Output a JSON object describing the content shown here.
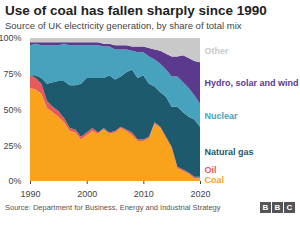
{
  "chart_data": {
    "type": "area",
    "stacked": true,
    "title": "Use of coal has fallen sharply since 1990",
    "subtitle": "Source of UK electricity generation, by share of total mix",
    "source": "Source: Department for Business, Energy and Industrial Strategy",
    "logo": "BBC",
    "x": [
      1990,
      1991,
      1992,
      1993,
      1994,
      1995,
      1996,
      1997,
      1998,
      1999,
      2000,
      2001,
      2002,
      2003,
      2004,
      2005,
      2006,
      2007,
      2008,
      2009,
      2010,
      2011,
      2012,
      2013,
      2014,
      2015,
      2016,
      2017,
      2018,
      2019,
      2020
    ],
    "xlim": [
      1990,
      2020
    ],
    "xticks": [
      1990,
      2000,
      2010,
      2020
    ],
    "ylim": [
      0,
      100
    ],
    "yticks": [
      {
        "value": 0,
        "label": "0%"
      },
      {
        "value": 25,
        "label": "25%"
      },
      {
        "value": 50,
        "label": "50%"
      },
      {
        "value": 75,
        "label": "75%"
      },
      {
        "value": 100,
        "label": "100%"
      }
    ],
    "series": [
      {
        "name": "Coal",
        "color": "#f8a31b",
        "values": [
          65,
          64,
          61,
          51,
          48,
          45,
          41,
          35,
          34,
          29,
          32,
          35,
          33,
          36,
          33,
          34,
          37,
          35,
          32,
          28,
          28,
          30,
          40,
          37,
          30,
          23,
          9,
          7,
          5,
          2,
          2
        ]
      },
      {
        "name": "Oil",
        "color": "#e8595b",
        "values": [
          9,
          8,
          7,
          5,
          4,
          4,
          3,
          2,
          2,
          2,
          2,
          2,
          1,
          1,
          1,
          1,
          1,
          1,
          2,
          1,
          1,
          1,
          1,
          1,
          1,
          1,
          1,
          1,
          1,
          1,
          1
        ]
      },
      {
        "name": "Natural gas",
        "color": "#1d5a6e",
        "values": [
          0,
          2,
          4,
          12,
          17,
          21,
          26,
          30,
          31,
          37,
          38,
          35,
          38,
          35,
          40,
          36,
          35,
          40,
          44,
          43,
          45,
          37,
          25,
          24,
          28,
          28,
          42,
          40,
          39,
          40,
          35
        ]
      },
      {
        "name": "Nuclear",
        "color": "#46a2bd",
        "values": [
          21,
          22,
          23,
          27,
          26,
          25,
          26,
          28,
          28,
          27,
          23,
          23,
          23,
          22,
          20,
          21,
          19,
          16,
          13,
          18,
          16,
          19,
          19,
          20,
          19,
          21,
          21,
          21,
          20,
          17,
          16
        ]
      },
      {
        "name": "Hydro, solar and wind",
        "color": "#5b3a8e",
        "values": [
          2,
          1,
          2,
          2,
          2,
          2,
          1,
          2,
          2,
          2,
          2,
          2,
          2,
          2,
          2,
          3,
          3,
          3,
          3,
          4,
          4,
          6,
          7,
          9,
          11,
          14,
          14,
          19,
          21,
          24,
          29
        ]
      },
      {
        "name": "Other",
        "color": "#c9c9c9",
        "values": [
          3,
          3,
          3,
          3,
          3,
          3,
          3,
          3,
          3,
          3,
          3,
          3,
          3,
          4,
          4,
          5,
          5,
          5,
          6,
          6,
          6,
          7,
          8,
          9,
          11,
          13,
          13,
          12,
          14,
          16,
          17
        ]
      }
    ]
  }
}
